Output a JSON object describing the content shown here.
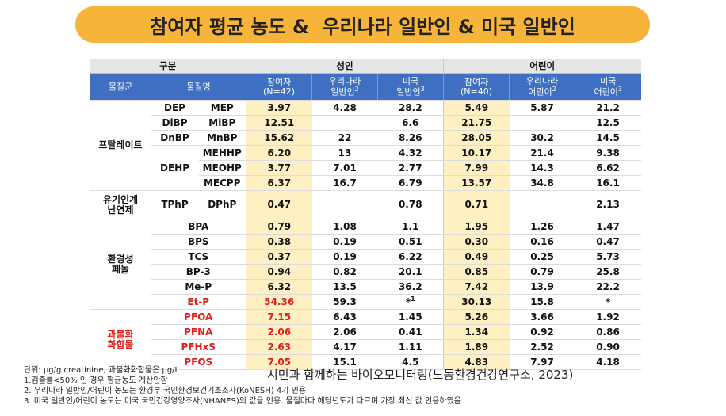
{
  "title": "참여자 평균 농도 &  우리나라 일반인 & 미국 일반인",
  "table": {
    "header": {
      "group": "구분",
      "adult": "성인",
      "child": "어린이",
      "columns": [
        {
          "text": "물질군"
        },
        {
          "text": "물질명"
        },
        {
          "text": "참여자\n(N=42)"
        },
        {
          "text": "우리나라\n일반인",
          "sup": "2"
        },
        {
          "text": "미국\n일반인",
          "sup": "3"
        },
        {
          "text": "참여자\n(N=40)"
        },
        {
          "text": "우리나라\n어린이",
          "sup": "2"
        },
        {
          "text": "미국\n어린이",
          "sup": "3"
        }
      ]
    },
    "groups": [
      {
        "name": "프탈레이트",
        "parents": [
          {
            "name": "DEP",
            "metabolites": [
              {
                "name": "MEP",
                "values": [
                  "3.97",
                  "4.28",
                  "28.2",
                  "5.49",
                  "5.87",
                  "21.2"
                ]
              }
            ]
          },
          {
            "name": "DiBP",
            "metabolites": [
              {
                "name": "MiBP",
                "values": [
                  "12.51",
                  null,
                  "6.6",
                  "21.75",
                  null,
                  "12.5"
                ]
              }
            ]
          },
          {
            "name": "DnBP",
            "metabolites": [
              {
                "name": "MnBP",
                "values": [
                  "15.62",
                  "22",
                  "8.26",
                  "28.05",
                  "30.2",
                  "14.5"
                ]
              }
            ]
          },
          {
            "name": "DEHP",
            "metabolites": [
              {
                "name": "MEHHP",
                "values": [
                  "6.20",
                  "13",
                  "4.32",
                  "10.17",
                  "21.4",
                  "9.38"
                ]
              },
              {
                "name": "MEOHP",
                "values": [
                  "3.77",
                  "7.01",
                  "2.77",
                  "7.99",
                  "14.3",
                  "6.62"
                ]
              },
              {
                "name": "MECPP",
                "values": [
                  "6.37",
                  "16.7",
                  "6.79",
                  "13.57",
                  "34.8",
                  "16.1"
                ]
              }
            ]
          }
        ]
      },
      {
        "name": "유기인계\n난연제",
        "parents": [
          {
            "name": "TPhP",
            "metabolites": [
              {
                "name": "DPhP",
                "values": [
                  "0.47",
                  null,
                  "0.78",
                  "0.71",
                  null,
                  "2.13"
                ]
              }
            ]
          }
        ]
      },
      {
        "name": "환경성\n페놀",
        "parents": [
          {
            "metabolites": [
              {
                "name": "BPA",
                "values": [
                  "0.79",
                  "1.08",
                  "1.1",
                  "1.95",
                  "1.26",
                  "1.47"
                ]
              },
              {
                "name": "BPS",
                "values": [
                  "0.38",
                  "0.19",
                  "0.51",
                  "0.30",
                  "0.16",
                  "0.47"
                ]
              },
              {
                "name": "TCS",
                "values": [
                  "0.37",
                  "0.19",
                  "6.22",
                  "0.49",
                  "0.25",
                  "5.73"
                ]
              },
              {
                "name": "BP-3",
                "values": [
                  "0.94",
                  "0.82",
                  "20.1",
                  "0.85",
                  "0.79",
                  "25.8"
                ]
              },
              {
                "name": "Me-P",
                "values": [
                  "6.32",
                  "13.5",
                  "36.2",
                  "7.42",
                  "13.9",
                  "22.2"
                ]
              },
              {
                "name": "Et-P",
                "color": "#e0201b",
                "values": [
                  "54.36",
                  "59.3",
                  {
                    "text": "*",
                    "sup": "1"
                  },
                  "30.13",
                  "15.8",
                  "*"
                ]
              }
            ]
          }
        ]
      },
      {
        "name": "과불화\n화합물",
        "color": "#e0201b",
        "parents": [
          {
            "metabolites": [
              {
                "name": "PFOA",
                "color": "#e0201b",
                "values": [
                  "7.15",
                  "6.43",
                  "1.45",
                  "5.26",
                  "3.66",
                  "1.92"
                ]
              },
              {
                "name": "PFNA",
                "color": "#e0201b",
                "values": [
                  "2.06",
                  "2.06",
                  "0.41",
                  "1.34",
                  "0.92",
                  "0.86"
                ]
              },
              {
                "name": "PFHxS",
                "color": "#e0201b",
                "values": [
                  "2.63",
                  "4.17",
                  "1.11",
                  "1.89",
                  "2.52",
                  "0.90"
                ]
              },
              {
                "name": "PFOS",
                "color": "#e0201b",
                "values": [
                  "7.05",
                  "15.1",
                  "4.5",
                  "4.83",
                  "7.97",
                  "4.18"
                ]
              }
            ]
          }
        ]
      }
    ]
  },
  "footnotes": [
    "단위: μg/g creatinine, 과불화화합물은 μg/L",
    "1.검출률<50% 인 경우 평균농도 계산안함",
    "2. 우리나라 일반인/어린이 농도는 환경부 국민환경보건기초조사(KoNESH) 4기 인용",
    "3. 미국 일반인/어린이 농도는 미국 국민건강영양조사(NHANES)의 값을 인용. 물질마다 해당년도가 다르며 가장 최신 값 인용하였음"
  ],
  "source": "시민과 함께하는 바이오모니터링(노동환경건강연구소, 2023)"
}
